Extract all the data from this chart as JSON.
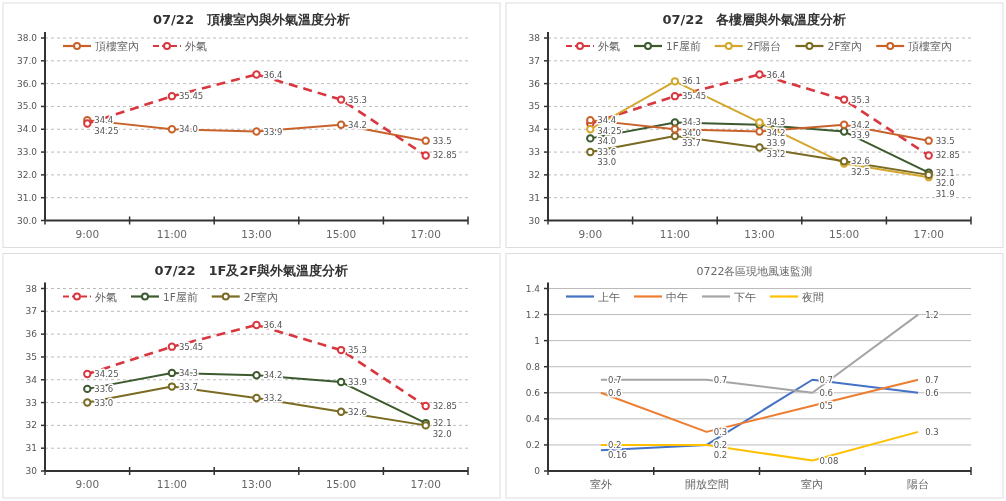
{
  "chart_data": [
    {
      "type": "line",
      "title": "07/22　頂樓室內與外氣溫度分析",
      "categories": [
        "9:00",
        "11:00",
        "13:00",
        "15:00",
        "17:00"
      ],
      "ylim": [
        30,
        38
      ],
      "yticks": [
        {
          "value": 30,
          "label": "30.0"
        },
        {
          "value": 31,
          "label": "31.0"
        },
        {
          "value": 32,
          "label": "32.0"
        },
        {
          "value": 33,
          "label": "33.0"
        },
        {
          "value": 34,
          "label": "34.0"
        },
        {
          "value": 35,
          "label": "35.0"
        },
        {
          "value": 36,
          "label": "36.0"
        },
        {
          "value": 37,
          "label": "37.0"
        },
        {
          "value": 38,
          "label": "38.0"
        }
      ],
      "grid": "y",
      "legend": "top left",
      "data_labels": true,
      "marker": "circle",
      "series": [
        {
          "name": "頂樓室內",
          "color": "#c8622a",
          "line_style": "solid",
          "values": [
            34.4,
            34.0,
            33.9,
            34.2,
            33.5
          ],
          "value_labels": [
            "34.4",
            "34.0",
            "33.9",
            "34.2",
            "33.5"
          ]
        },
        {
          "name": "外氣",
          "color": "#d9363e",
          "line_style": "dashed",
          "values": [
            34.25,
            35.45,
            36.4,
            35.3,
            32.85
          ],
          "value_labels": [
            "34.25",
            "35.45",
            "36.4",
            "35.3",
            "32.85"
          ]
        }
      ]
    },
    {
      "type": "line",
      "title": "07/22　各樓層與外氣溫度分析",
      "categories": [
        "9:00",
        "11:00",
        "13:00",
        "15:00",
        "17:00"
      ],
      "ylim": [
        30,
        38
      ],
      "yticks": [
        30,
        31,
        32,
        33,
        34,
        35,
        36,
        37,
        38
      ],
      "grid": "y",
      "legend": "top left",
      "data_labels": true,
      "marker": "circle",
      "series": [
        {
          "name": "外氣",
          "color": "#d9363e",
          "line_style": "dashed",
          "values": [
            34.25,
            35.45,
            36.4,
            35.3,
            32.85
          ],
          "value_labels": [
            "34.25",
            "35.45",
            "36.4",
            "35.3",
            "32.85"
          ]
        },
        {
          "name": "1F屋前",
          "color": "#3d5a2e",
          "line_style": "solid",
          "values": [
            33.6,
            34.3,
            34.2,
            33.9,
            32.1
          ],
          "value_labels": [
            "33.6",
            "34.3",
            "34.2",
            "33.9",
            "32.1"
          ]
        },
        {
          "name": "2F陽台",
          "color": "#d4a72c",
          "line_style": "solid",
          "values": [
            34.0,
            36.1,
            34.3,
            32.5,
            31.9
          ],
          "value_labels": [
            "34.0",
            "36.1",
            "34.3",
            "32.5",
            "31.9"
          ]
        },
        {
          "name": "2F室內",
          "color": "#7a6a22",
          "line_style": "solid",
          "values": [
            33.0,
            33.7,
            33.2,
            32.6,
            32.0
          ],
          "value_labels": [
            "33.0",
            "33.7",
            "33.2",
            "32.6",
            "32.0"
          ]
        },
        {
          "name": "頂樓室內",
          "color": "#c8622a",
          "line_style": "solid",
          "values": [
            34.4,
            34.0,
            33.9,
            34.2,
            33.5
          ],
          "value_labels": [
            "34.4",
            "34.0",
            "33.9",
            "34.2",
            "33.5"
          ]
        }
      ]
    },
    {
      "type": "line",
      "title": "07/22　1F及2F與外氣溫度分析",
      "categories": [
        "9:00",
        "11:00",
        "13:00",
        "15:00",
        "17:00"
      ],
      "ylim": [
        30,
        38
      ],
      "yticks": [
        30,
        31,
        32,
        33,
        34,
        35,
        36,
        37,
        38
      ],
      "grid": "y",
      "legend": "top left",
      "data_labels": true,
      "marker": "circle",
      "series": [
        {
          "name": "外氣",
          "color": "#d9363e",
          "line_style": "dashed",
          "values": [
            34.25,
            35.45,
            36.4,
            35.3,
            32.85
          ],
          "value_labels": [
            "34.25",
            "35.45",
            "36.4",
            "35.3",
            "32.85"
          ]
        },
        {
          "name": "1F屋前",
          "color": "#3d5a2e",
          "line_style": "solid",
          "values": [
            33.6,
            34.3,
            34.2,
            33.9,
            32.1
          ],
          "value_labels": [
            "33.6",
            "34.3",
            "34.2",
            "33.9",
            "32.1"
          ]
        },
        {
          "name": "2F室內",
          "color": "#7a6a22",
          "line_style": "solid",
          "values": [
            33.0,
            33.7,
            33.2,
            32.6,
            32.0
          ],
          "value_labels": [
            "33.0",
            "33.7",
            "33.2",
            "32.6",
            "32.0"
          ]
        }
      ]
    },
    {
      "type": "line",
      "title": "0722各區現地風速監測",
      "categories": [
        "室外",
        "開放空間",
        "室內",
        "陽台"
      ],
      "ylim": [
        0,
        1.4
      ],
      "yticks": [
        0,
        0.2,
        0.4,
        0.6,
        0.8,
        1,
        1.2,
        1.4
      ],
      "grid": "y",
      "legend": "top left",
      "data_labels": true,
      "marker": "none",
      "series": [
        {
          "name": "上午",
          "color": "#4472c4",
          "line_style": "solid",
          "values": [
            0.16,
            0.2,
            0.7,
            0.6
          ],
          "value_labels": [
            "0.16",
            "0.2",
            "0.7",
            "0.6"
          ]
        },
        {
          "name": "中午",
          "color": "#ed7d31",
          "line_style": "solid",
          "values": [
            0.6,
            0.3,
            0.5,
            0.7
          ],
          "value_labels": [
            "0.6",
            "0.3",
            "0.5",
            "0.7"
          ]
        },
        {
          "name": "下午",
          "color": "#a5a5a5",
          "line_style": "solid",
          "values": [
            0.7,
            0.7,
            0.6,
            1.2
          ],
          "value_labels": [
            "0.7",
            "0.7",
            "0.6",
            "1.2"
          ]
        },
        {
          "name": "夜間",
          "color": "#ffc000",
          "line_style": "solid",
          "values": [
            0.2,
            0.2,
            0.08,
            0.3
          ],
          "value_labels": [
            "0.2",
            "0.2",
            "0.08",
            "0.3"
          ]
        }
      ]
    }
  ]
}
